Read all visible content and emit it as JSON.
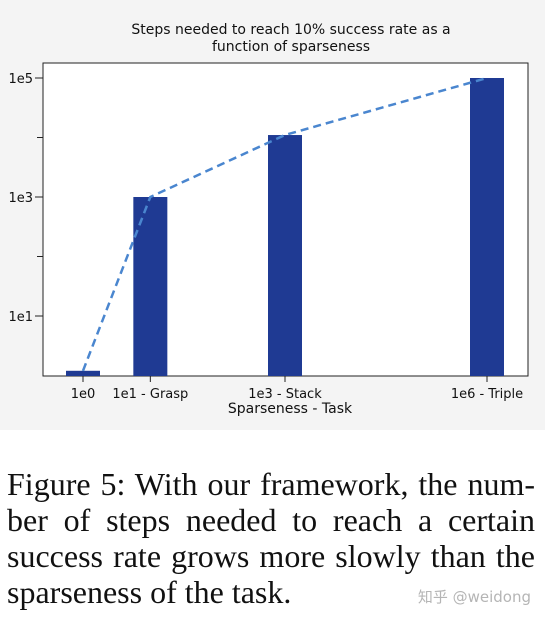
{
  "chart_data": {
    "type": "bar",
    "title": "Steps needed to reach 10% success rate as a function of sparseness",
    "title_lines": [
      "Steps needed to reach 10% success rate as a",
      "function of sparseness"
    ],
    "xlabel": "Sparseness - Task",
    "ylabel": "",
    "y_scale": "log",
    "ylim": [
      1,
      100000
    ],
    "y_ticks": [
      {
        "value": 10,
        "label": "1e1"
      },
      {
        "value": 1000,
        "label": "1e3"
      },
      {
        "value": 100000,
        "label": "1e5"
      }
    ],
    "x_scale": "log",
    "xlim": [
      1,
      4000000
    ],
    "categories": [
      "1e0",
      "1e1 - Grasp",
      "1e3 - Stack",
      "1e6 - Triple"
    ],
    "x_values": [
      1,
      10,
      1000,
      1000000
    ],
    "values": [
      1.2,
      1000,
      11000,
      100000
    ],
    "bar_color": "#1f3a93",
    "trend_line": {
      "style": "dashed",
      "color": "#4a86cf",
      "values": [
        1.2,
        1000,
        11000,
        100000
      ]
    },
    "grid": false
  },
  "caption": {
    "lines": [
      "Figure 5: With our framework, the num-",
      "ber of steps needed to reach a certain",
      "success rate grows more slowly than the",
      "sparseness of the task."
    ]
  },
  "watermark": "知乎 @weidong"
}
